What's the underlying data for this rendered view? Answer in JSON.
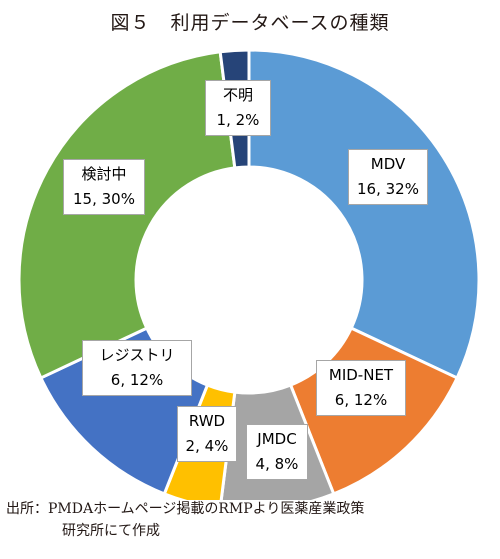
{
  "title": "図５　利用データベースの種類",
  "source": {
    "line1": "出所：PMDAホームページ掲載のRMPより医薬産業政策",
    "line2": "研究所にて作成"
  },
  "chart_data": {
    "type": "pie",
    "style": "donut",
    "title": "図５　利用データベースの種類",
    "slices": [
      {
        "name": "MDV",
        "value": 16,
        "percent": "32%",
        "label": "16, 32%",
        "color": "#5b9bd5"
      },
      {
        "name": "MID-NET",
        "value": 6,
        "percent": "12%",
        "label": "6, 12%",
        "color": "#ed7d31"
      },
      {
        "name": "JMDC",
        "value": 4,
        "percent": "8%",
        "label": "4, 8%",
        "color": "#a5a5a5"
      },
      {
        "name": "RWD",
        "value": 2,
        "percent": "4%",
        "label": "2, 4%",
        "color": "#ffc000"
      },
      {
        "name": "レジストリ",
        "value": 6,
        "percent": "12%",
        "label": "6, 12%",
        "color": "#4472c4"
      },
      {
        "name": "検討中",
        "value": 15,
        "percent": "30%",
        "label": "15, 30%",
        "color": "#70ad47"
      },
      {
        "name": "不明",
        "value": 1,
        "percent": "2%",
        "label": "1, 2%",
        "color": "#264478"
      }
    ]
  }
}
